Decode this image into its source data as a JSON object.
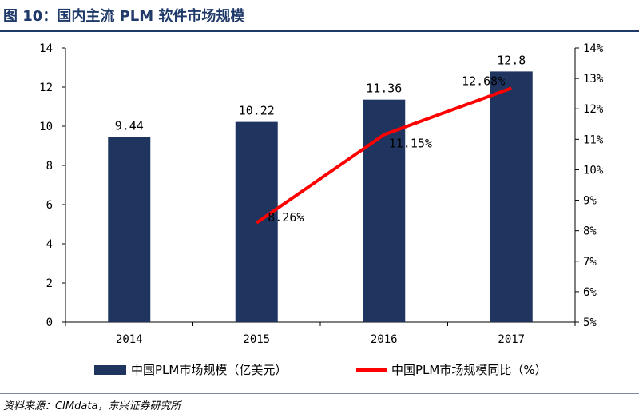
{
  "title": "图 10：国内主流 PLM 软件市场规模",
  "source": "资料来源：CIMdata，东兴证券研究所",
  "chart_data": {
    "type": "bar",
    "categories": [
      "2014",
      "2015",
      "2016",
      "2017"
    ],
    "series": [
      {
        "name": "中国PLM市场规模（亿美元）",
        "type": "bar",
        "axis": "left",
        "color": "#1f3560",
        "values": [
          9.44,
          10.22,
          11.36,
          12.8
        ],
        "labels": [
          "9.44",
          "10.22",
          "11.36",
          "12.8"
        ]
      },
      {
        "name": "中国PLM市场规模同比（%）",
        "type": "line",
        "axis": "right",
        "color": "#ff0000",
        "values": [
          null,
          8.26,
          11.15,
          12.68
        ],
        "labels": [
          "",
          "8.26%",
          "11.15%",
          "12.68%"
        ]
      }
    ],
    "y_left": {
      "ylim": [
        0,
        14
      ],
      "ticks": [
        "0",
        "2",
        "4",
        "6",
        "8",
        "10",
        "12",
        "14"
      ]
    },
    "y_right": {
      "ylim": [
        5,
        14
      ],
      "ticks": [
        "5%",
        "6%",
        "7%",
        "8%",
        "9%",
        "10%",
        "11%",
        "12%",
        "13%",
        "14%"
      ]
    },
    "legend": "bottom",
    "grid": false
  }
}
